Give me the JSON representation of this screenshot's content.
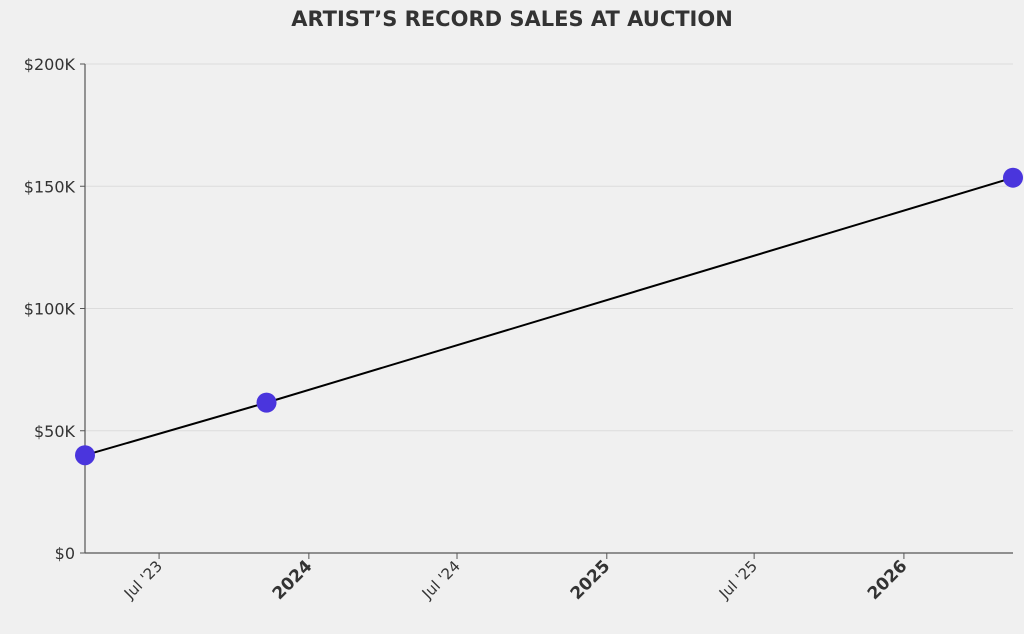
{
  "chart_data": {
    "type": "line",
    "title": "ARTIST’S RECORD SALES AT AUCTION",
    "xlabel": "",
    "ylabel": "",
    "x_type": "date",
    "xlim": [
      "2023-04-01",
      "2026-05-15"
    ],
    "ylim": [
      0,
      200000
    ],
    "y_ticks": [
      {
        "value": 0,
        "label": "$0"
      },
      {
        "value": 50000,
        "label": "$50K"
      },
      {
        "value": 100000,
        "label": "$100K"
      },
      {
        "value": 150000,
        "label": "$150K"
      },
      {
        "value": 200000,
        "label": "$200K"
      }
    ],
    "x_ticks": [
      {
        "value": "2023-07-01",
        "label": "Jul '23",
        "major": false
      },
      {
        "value": "2024-01-01",
        "label": "2024",
        "major": true
      },
      {
        "value": "2024-07-01",
        "label": "Jul '24",
        "major": false
      },
      {
        "value": "2025-01-01",
        "label": "2025",
        "major": true
      },
      {
        "value": "2025-07-01",
        "label": "Jul '25",
        "major": false
      },
      {
        "value": "2026-01-01",
        "label": "2026",
        "major": true
      }
    ],
    "grid": true,
    "series": [
      {
        "points": [
          {
            "x": "2023-04-01",
            "y": 40000
          },
          {
            "x": "2023-11-10",
            "y": 61500
          },
          {
            "x": "2026-05-15",
            "y": 153500
          }
        ],
        "line_color": "#000000",
        "marker_color": "#4a35dd"
      }
    ]
  }
}
